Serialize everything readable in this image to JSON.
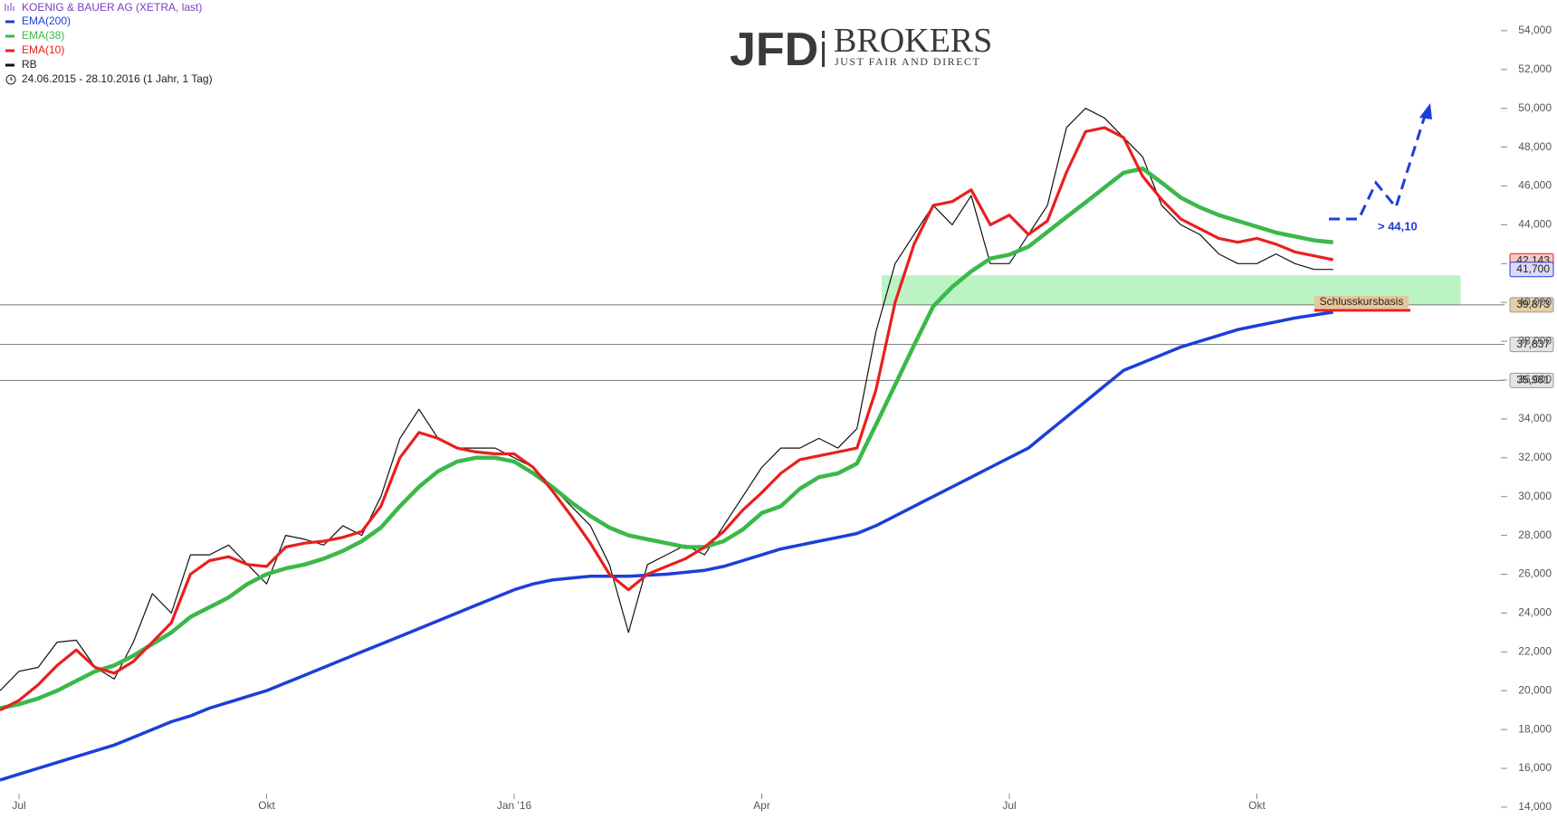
{
  "chart_data": {
    "type": "line",
    "title": "KOENIG & BAUER AG (XETRA, last)",
    "subtitle": "24.06.2015 - 28.10.2016 (1 Jahr, 1 Tag)",
    "logo": {
      "brand": "JFD",
      "name": "BROKERS",
      "tagline": "JUST FAIR AND DIRECT"
    },
    "categories": [
      null,
      "Jul",
      null,
      null,
      null,
      null,
      null,
      null,
      null,
      null,
      null,
      null,
      null,
      null,
      "Okt",
      null,
      null,
      null,
      null,
      null,
      null,
      null,
      null,
      null,
      null,
      null,
      null,
      "Jan '16",
      null,
      null,
      null,
      null,
      null,
      null,
      null,
      null,
      null,
      null,
      null,
      null,
      "Apr",
      null,
      null,
      null,
      null,
      null,
      null,
      null,
      null,
      null,
      null,
      null,
      null,
      "Jul",
      null,
      null,
      null,
      null,
      null,
      null,
      null,
      null,
      null,
      null,
      null,
      null,
      "Okt",
      null,
      null,
      null,
      null,
      null,
      null,
      null,
      null,
      null,
      null,
      null,
      null
    ],
    "series": [
      {
        "name": "EMA(200)",
        "color": "#1c3fd8",
        "values": [
          15400,
          15700,
          16000,
          16300,
          16600,
          16900,
          17200,
          17600,
          18000,
          18400,
          18700,
          19100,
          19400,
          19700,
          20000,
          20400,
          20800,
          21200,
          21600,
          22000,
          22400,
          22800,
          23200,
          23600,
          24000,
          24400,
          24800,
          25200,
          25500,
          25700,
          25800,
          25900,
          25900,
          25900,
          25950,
          26000,
          26100,
          26200,
          26400,
          26700,
          27000,
          27300,
          27500,
          27700,
          27900,
          28100,
          28500,
          29000,
          29500,
          30000,
          30500,
          31000,
          31500,
          32000,
          32500,
          33300,
          34100,
          34900,
          35700,
          36500,
          36900,
          37300,
          37700,
          38000,
          38300,
          38600,
          38800,
          39000,
          39200,
          39350,
          39500,
          null,
          null,
          null,
          null,
          null,
          null,
          null,
          null
        ]
      },
      {
        "name": "EMA(38)",
        "color": "#3cb84a",
        "values": [
          19100,
          19300,
          19600,
          20000,
          20500,
          21000,
          21300,
          21800,
          22400,
          23000,
          23800,
          24300,
          24800,
          25500,
          26000,
          26300,
          26500,
          26800,
          27200,
          27700,
          28400,
          29500,
          30500,
          31300,
          31800,
          32000,
          32000,
          31800,
          31200,
          30500,
          29700,
          29000,
          28400,
          28000,
          27800,
          27600,
          27400,
          27400,
          27700,
          28300,
          29150,
          29500,
          30400,
          31000,
          31200,
          31700,
          33700,
          35750,
          37800,
          39800,
          40800,
          41600,
          42260,
          42460,
          42870,
          43630,
          44400,
          45150,
          45920,
          46680,
          46900,
          46170,
          45400,
          44900,
          44500,
          44200,
          43900,
          43600,
          43400,
          43200,
          43100,
          null,
          null,
          null,
          null,
          null,
          null,
          null,
          null
        ]
      },
      {
        "name": "EMA(10)",
        "color": "#e8201f",
        "values": [
          19000,
          19500,
          20300,
          21300,
          22100,
          21200,
          20900,
          21500,
          22500,
          23500,
          26000,
          26700,
          26900,
          26500,
          26400,
          27400,
          27600,
          27700,
          27900,
          28200,
          29500,
          32000,
          33300,
          33000,
          32500,
          32300,
          32200,
          32200,
          31500,
          30300,
          29000,
          27600,
          26000,
          25200,
          26000,
          26400,
          26800,
          27400,
          28200,
          29300,
          30200,
          31200,
          31900,
          32100,
          32300,
          32500,
          35500,
          40000,
          43000,
          45000,
          45200,
          45800,
          44000,
          44500,
          43500,
          44200,
          46700,
          48800,
          49000,
          48500,
          46500,
          45300,
          44300,
          43800,
          43300,
          43100,
          43300,
          43000,
          42600,
          42400,
          42200,
          null,
          null,
          null,
          null,
          null,
          null,
          null,
          null
        ]
      },
      {
        "name": "RB",
        "color": "#111111",
        "values": [
          20000,
          21000,
          21200,
          22500,
          22600,
          21200,
          20600,
          22500,
          25000,
          24000,
          27000,
          27000,
          27500,
          26500,
          25500,
          28000,
          27800,
          27500,
          28500,
          28000,
          30000,
          33000,
          34500,
          33000,
          32500,
          32500,
          32500,
          32000,
          31500,
          30500,
          29500,
          28500,
          26500,
          23000,
          26500,
          27000,
          27500,
          27000,
          28500,
          30000,
          31500,
          32500,
          32500,
          33000,
          32500,
          33500,
          38500,
          42000,
          43500,
          45000,
          44000,
          45500,
          42000,
          42000,
          43500,
          45000,
          49000,
          50000,
          49500,
          48500,
          47500,
          45000,
          44000,
          43500,
          42500,
          42000,
          42000,
          42500,
          42000,
          41700,
          41700,
          null,
          null,
          null,
          null,
          null,
          null,
          null,
          null
        ]
      }
    ],
    "ylim": [
      13390,
      55580
    ],
    "yticks": [
      {
        "value": 14000,
        "label": "14,000"
      },
      {
        "value": 16000,
        "label": "16,000"
      },
      {
        "value": 18000,
        "label": "18,000"
      },
      {
        "value": 20000,
        "label": "20,000"
      },
      {
        "value": 22000,
        "label": "22,000"
      },
      {
        "value": 24000,
        "label": "24,000"
      },
      {
        "value": 26000,
        "label": "26,000"
      },
      {
        "value": 28000,
        "label": "28,000"
      },
      {
        "value": 30000,
        "label": "30,000"
      },
      {
        "value": 32000,
        "label": "32,000"
      },
      {
        "value": 34000,
        "label": "34,000"
      },
      {
        "value": 36000,
        "label": "36,000"
      },
      {
        "value": 38000,
        "label": "38,000"
      },
      {
        "value": 40000,
        "label": "40,000"
      },
      {
        "value": 42000,
        "label": "42,000"
      },
      {
        "value": 44000,
        "label": "44,000"
      },
      {
        "value": 46000,
        "label": "46,000"
      },
      {
        "value": 48000,
        "label": "48,000"
      },
      {
        "value": 50000,
        "label": "50,000"
      },
      {
        "value": 52000,
        "label": "52,000"
      },
      {
        "value": 54000,
        "label": "54,000"
      }
    ],
    "levels": [
      {
        "value": 39873,
        "label": "39,873"
      },
      {
        "value": 37837,
        "label": "37,837"
      },
      {
        "value": 35981,
        "label": "35,981"
      }
    ],
    "price_labels": [
      {
        "value": 42143,
        "label": "42,143",
        "color": "#f5c8c8"
      },
      {
        "value": 41700,
        "label": "41,700",
        "color": "#dcd8f5"
      }
    ],
    "zone": {
      "from": 39873,
      "to": 41400,
      "color": "#a5efb0"
    },
    "annotations": [
      "Schlusskursbasis",
      "> 44,10"
    ]
  }
}
